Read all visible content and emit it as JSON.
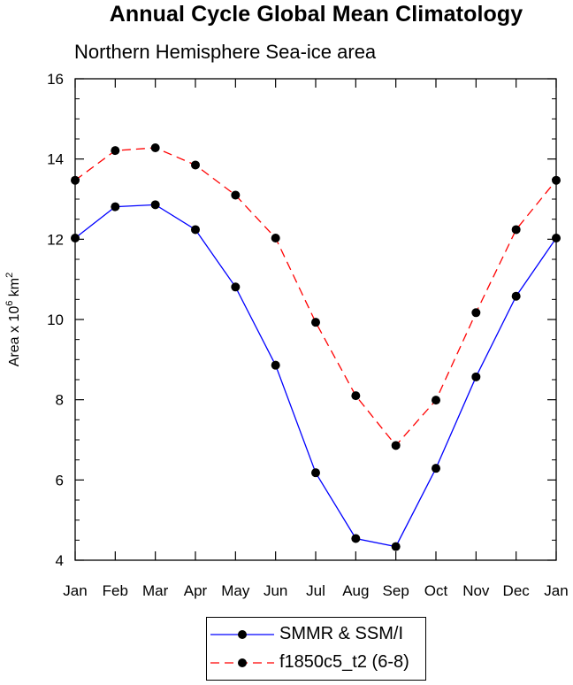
{
  "chart_data": {
    "type": "line",
    "title": "Annual Cycle Global Mean Climatology",
    "subtitle": "Northern Hemisphere Sea-ice area",
    "ylabel": "Area x 10",
    "ylabel_sup": "6",
    "ylabel_unit": " km",
    "ylabel_unit_sup": "2",
    "xlabel": "",
    "ylim": [
      4,
      16
    ],
    "yticks": [
      4,
      6,
      8,
      10,
      12,
      14,
      16
    ],
    "categories": [
      "Jan",
      "Feb",
      "Mar",
      "Apr",
      "May",
      "Jun",
      "Jul",
      "Aug",
      "Sep",
      "Oct",
      "Nov",
      "Dec",
      "Jan"
    ],
    "series": [
      {
        "name": "SMMR & SSM/I",
        "color": "#0000ff",
        "style": "solid",
        "values": [
          12.03,
          12.81,
          12.86,
          12.24,
          10.81,
          8.86,
          6.18,
          4.54,
          4.34,
          6.29,
          8.57,
          10.58,
          12.03
        ]
      },
      {
        "name": "f1850c5_t2 (6-8)",
        "color": "#ff0000",
        "style": "dashed",
        "values": [
          13.47,
          14.21,
          14.28,
          13.85,
          13.1,
          12.03,
          9.93,
          8.1,
          6.86,
          7.99,
          10.17,
          12.24,
          13.47
        ]
      }
    ],
    "grid": false,
    "legend_position": "bottom-center"
  }
}
